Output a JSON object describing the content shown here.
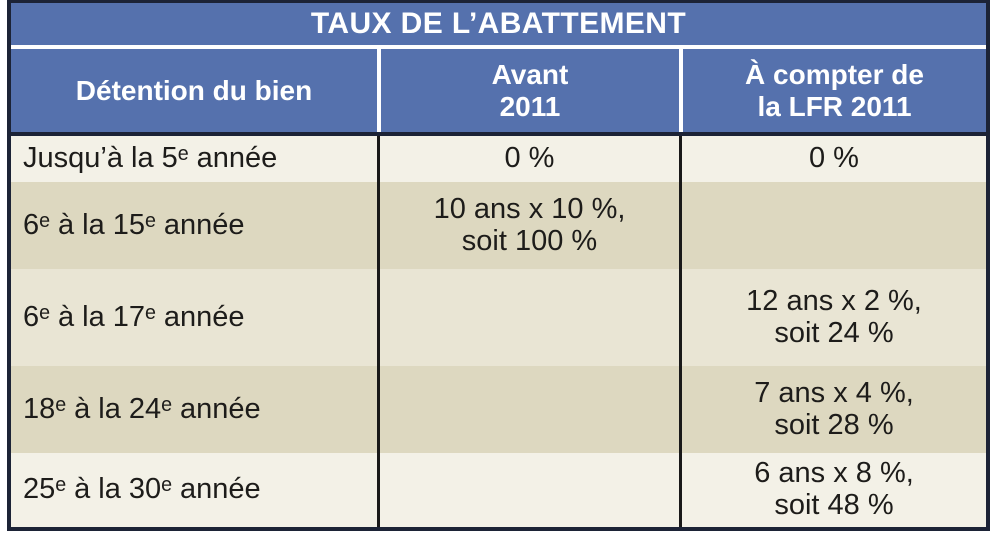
{
  "table": {
    "title": "TAUX DE L’ABATTEMENT",
    "columns": [
      {
        "label": "Détention du bien"
      },
      {
        "label": "Avant\n2011"
      },
      {
        "label": "À compter de\nla LFR 2011"
      }
    ],
    "rows": [
      {
        "shade": "light",
        "cells": [
          "Jusqu’à la 5ᵉ année",
          "0 %",
          "0 %"
        ]
      },
      {
        "shade": "dark",
        "cells": [
          "6ᵉ à la 15ᵉ année",
          "10 ans x 10 %,\nsoit 100 %",
          ""
        ]
      },
      {
        "shade": "medium",
        "cells": [
          "6ᵉ à la 17ᵉ année",
          "",
          "12 ans x 2 %,\nsoit 24 %"
        ]
      },
      {
        "shade": "dark",
        "cells": [
          "18ᵉ à la 24ᵉ année",
          "",
          "7 ans x 4 %,\nsoit 28 %"
        ]
      },
      {
        "shade": "light",
        "cells": [
          "25ᵉ à la 30ᵉ année",
          "",
          "6 ans x 8 %,\nsoit 48 %"
        ]
      }
    ],
    "colors": {
      "header_blue": "#5571ad",
      "border_dark": "#1c2336",
      "line_black": "#191919",
      "row_light": "#f3f1e7",
      "row_medium": "#e9e5d4",
      "row_dark": "#ddd8c0",
      "body_text": "#1d1c1a",
      "header_text": "#ffffff"
    }
  },
  "chart_data": {
    "type": "table",
    "title": "TAUX DE L’ABATTEMENT",
    "columns": [
      "Détention du bien",
      "Avant 2011",
      "À compter de la LFR 2011"
    ],
    "rows": [
      [
        "Jusqu’à la 5ᵉ année",
        "0 %",
        "0 %"
      ],
      [
        "6ᵉ à la 15ᵉ année",
        "10 ans x 10 %, soit 100 %",
        ""
      ],
      [
        "6ᵉ à la 17ᵉ année",
        "",
        "12 ans x 2 %, soit 24 %"
      ],
      [
        "18ᵉ à la 24ᵉ année",
        "",
        "7 ans x 4 %, soit 28 %"
      ],
      [
        "25ᵉ à la 30ᵉ année",
        "",
        "6 ans x 8 %, soit 48 %"
      ]
    ]
  }
}
